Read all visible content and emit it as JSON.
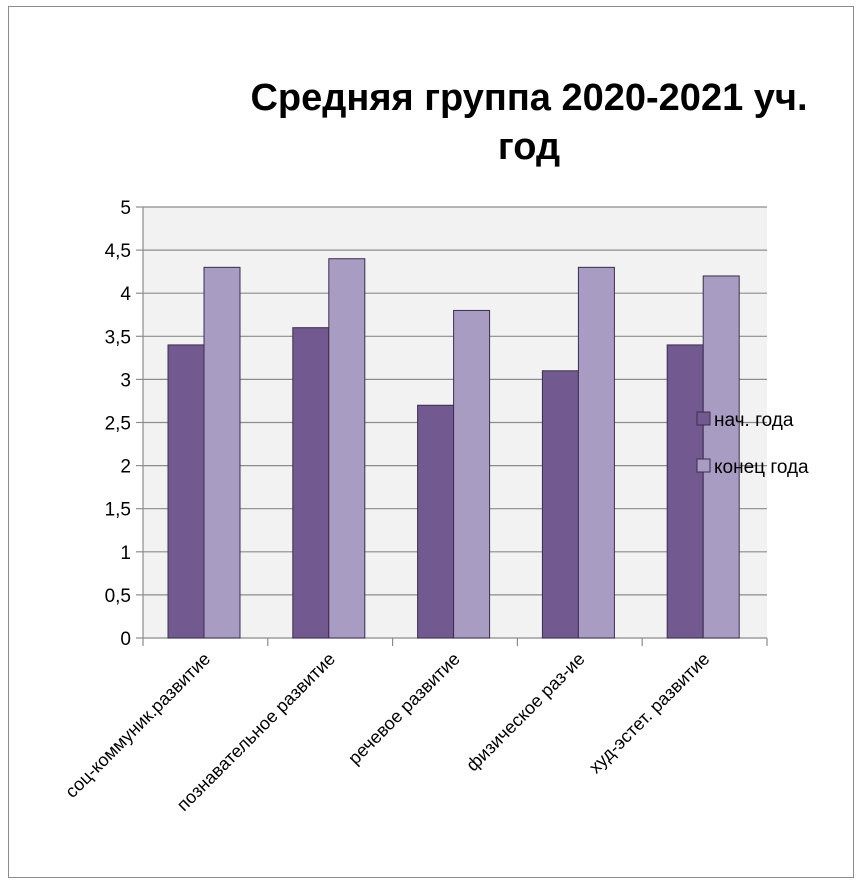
{
  "chart_data": {
    "type": "bar",
    "title_line1": "Средняя группа 2020-2021 уч.",
    "title_line2": "год",
    "categories": [
      "соц-коммуник.развитие",
      "познавательное развитие",
      "речевое развитие",
      "физическое раз-ие",
      "худ-эстет. развитие"
    ],
    "series": [
      {
        "name": "нач. года",
        "values": [
          3.4,
          3.6,
          2.7,
          3.1,
          3.4
        ],
        "color": "#72598f"
      },
      {
        "name": "конец года",
        "values": [
          4.3,
          4.4,
          3.8,
          4.3,
          4.2
        ],
        "color": "#a99cc3"
      }
    ],
    "y_ticks": [
      "0",
      "0,5",
      "1",
      "1,5",
      "2",
      "2,5",
      "3",
      "3,5",
      "4",
      "4,5",
      "5"
    ],
    "ylim": [
      0,
      5
    ],
    "grid": true,
    "legend_position": "right",
    "plot_background": "#f2f2f2",
    "gridline_color": "#8c8c8c",
    "bar_border_color": "#3b2d4d"
  }
}
